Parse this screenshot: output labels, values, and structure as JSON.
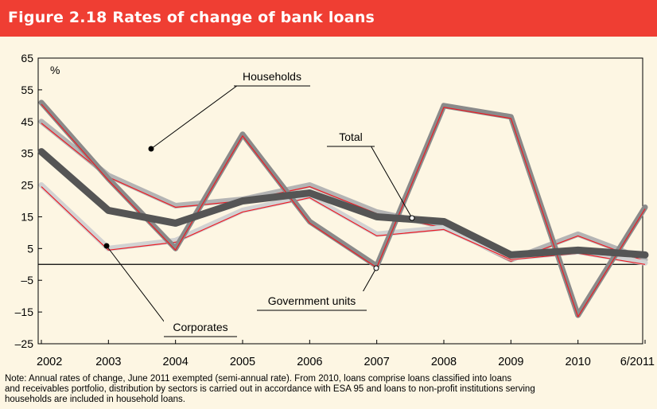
{
  "header": {
    "title": "Figure 2.18 Rates of change of bank loans",
    "background_color": "#ef3e33",
    "title_color": "#ffffff"
  },
  "chart_data": {
    "type": "line",
    "ylabel": "%",
    "ylim": [
      -25,
      65
    ],
    "yticks": [
      65,
      55,
      45,
      35,
      25,
      15,
      5,
      -5,
      -15,
      -25
    ],
    "ytick_labels": [
      "65",
      "55",
      "45",
      "35",
      "25",
      "15",
      "5",
      "–5",
      "–15",
      "–25"
    ],
    "categories": [
      "2002",
      "2003",
      "2004",
      "2005",
      "2006",
      "2007",
      "2008",
      "2009",
      "2010",
      "6/2011"
    ],
    "series": [
      {
        "name": "Households",
        "values": [
          45,
          28,
          18.5,
          20.5,
          25,
          16.5,
          12,
          1.5,
          9.5,
          1.5
        ],
        "color": "#b4b4b4",
        "highlight": "#ed1c24",
        "width": 7
      },
      {
        "name": "Corporates",
        "values": [
          25,
          5,
          7.5,
          17,
          21.5,
          9.5,
          11.5,
          2,
          4,
          0.5
        ],
        "color": "#d2d2d2",
        "highlight": "#ed1c24",
        "width": 7
      },
      {
        "name": "Government units",
        "values": [
          51,
          27,
          5,
          41,
          13.5,
          -0.5,
          50,
          46.5,
          -16,
          18
        ],
        "color": "#8a8a8a",
        "highlight": "#ed1c24",
        "width": 7
      },
      {
        "name": "Total",
        "values": [
          35.5,
          17,
          13,
          20,
          22.5,
          15,
          13.5,
          3,
          4.5,
          3
        ],
        "color": "#555555",
        "highlight": null,
        "width": 9
      }
    ],
    "annotations": [
      {
        "text": "Households",
        "series": "Households"
      },
      {
        "text": "Total",
        "series": "Total"
      },
      {
        "text": "Government units",
        "series": "Government units"
      },
      {
        "text": "Corporates",
        "series": "Corporates"
      }
    ],
    "zero_line": true,
    "grid": false,
    "legend": "none"
  },
  "note": {
    "lines": [
      "Note: Annual rates of change, June 2011 exempted (semi-annual rate). From 2010, loans comprise loans classified into loans",
      "and receivables portfolio, distribution by sectors is carried out in accordance with ESA 95 and loans to non-profit institutions serving",
      "households are included in household loans."
    ]
  }
}
